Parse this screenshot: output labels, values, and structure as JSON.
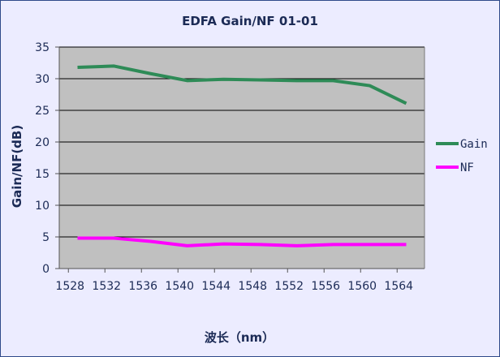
{
  "chart_data": {
    "type": "line",
    "title": "EDFA Gain/NF 01-01",
    "xlabel": "波长（nm）",
    "ylabel": "Gain/NF(dB)",
    "x": [
      1529,
      1533,
      1537,
      1541,
      1545,
      1549,
      1553,
      1557,
      1561,
      1565
    ],
    "xlim": [
      1527,
      1567
    ],
    "xticks": [
      1528,
      1532,
      1536,
      1540,
      1544,
      1548,
      1552,
      1556,
      1560,
      1564
    ],
    "ylim": [
      0,
      35
    ],
    "yticks": [
      0,
      5,
      10,
      15,
      20,
      25,
      30,
      35
    ],
    "grid": true,
    "legend_position": "right",
    "series": [
      {
        "name": "Gain",
        "color": "#2e8b57",
        "values": [
          31.8,
          32.0,
          30.8,
          29.7,
          29.9,
          29.8,
          29.7,
          29.7,
          28.9,
          26.1
        ]
      },
      {
        "name": "NF",
        "color": "#ff00ff",
        "values": [
          4.8,
          4.8,
          4.3,
          3.6,
          3.9,
          3.8,
          3.6,
          3.8,
          3.8,
          3.8
        ]
      }
    ]
  },
  "colors": {
    "background": "#ececff",
    "plot_area": "#c0c0c0",
    "border": "#2f4a8a",
    "text": "#1b2a55"
  }
}
